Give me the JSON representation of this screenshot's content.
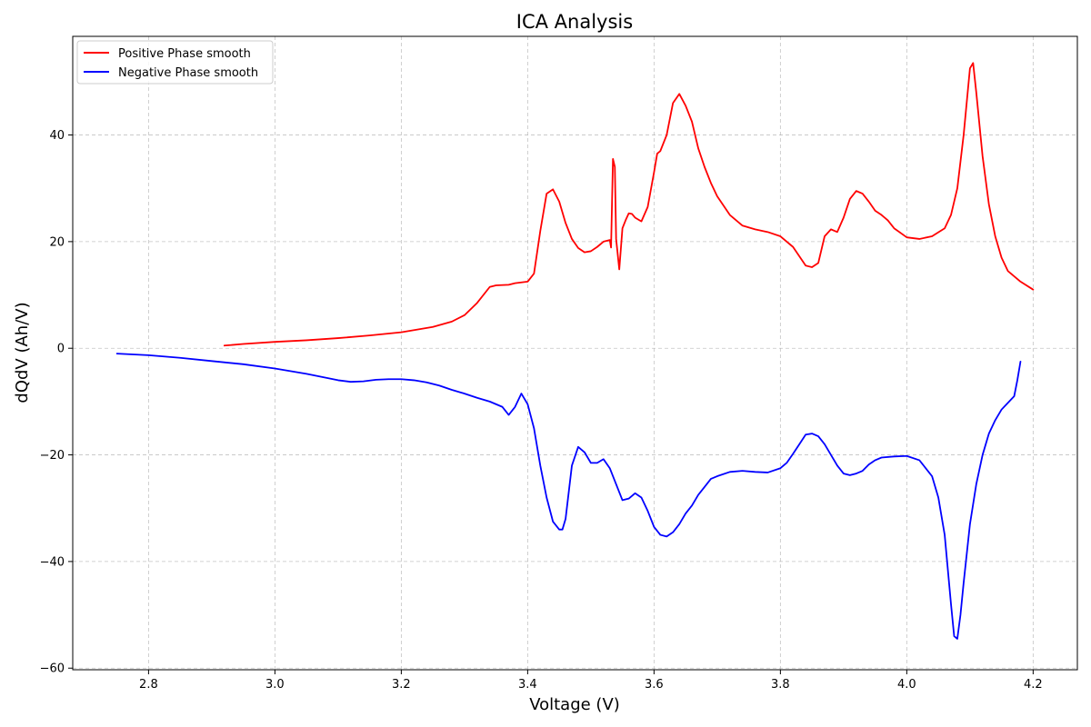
{
  "chart_data": {
    "type": "line",
    "title": "ICA Analysis",
    "xlabel": "Voltage (V)",
    "ylabel": "dQdV (Ah/V)",
    "xlim": [
      2.68,
      4.27
    ],
    "ylim": [
      -60.3,
      58.5
    ],
    "xticks": [
      2.8,
      3.0,
      3.2,
      3.4,
      3.6,
      3.8,
      4.0,
      4.2
    ],
    "xtick_labels": [
      "2.8",
      "3.0",
      "3.2",
      "3.4",
      "3.6",
      "3.8",
      "4.0",
      "4.2"
    ],
    "yticks": [
      -60,
      -40,
      -20,
      0,
      20,
      40
    ],
    "ytick_labels": [
      "−60",
      "−40",
      "−20",
      "0",
      "20",
      "40"
    ],
    "grid": true,
    "legend_position": "top-left",
    "series": [
      {
        "name": "Positive Phase smooth",
        "color": "#ff0000",
        "x": [
          2.92,
          2.95,
          3.0,
          3.05,
          3.1,
          3.15,
          3.2,
          3.25,
          3.28,
          3.3,
          3.32,
          3.34,
          3.35,
          3.37,
          3.38,
          3.4,
          3.41,
          3.42,
          3.43,
          3.44,
          3.45,
          3.46,
          3.47,
          3.48,
          3.49,
          3.5,
          3.51,
          3.52,
          3.53,
          3.532,
          3.535,
          3.538,
          3.54,
          3.545,
          3.55,
          3.555,
          3.56,
          3.565,
          3.57,
          3.58,
          3.59,
          3.6,
          3.605,
          3.61,
          3.62,
          3.63,
          3.64,
          3.65,
          3.66,
          3.67,
          3.68,
          3.69,
          3.7,
          3.72,
          3.74,
          3.76,
          3.78,
          3.8,
          3.82,
          3.84,
          3.85,
          3.86,
          3.87,
          3.88,
          3.89,
          3.9,
          3.91,
          3.92,
          3.93,
          3.94,
          3.95,
          3.96,
          3.97,
          3.98,
          4.0,
          4.02,
          4.04,
          4.06,
          4.07,
          4.08,
          4.09,
          4.1,
          4.105,
          4.11,
          4.12,
          4.13,
          4.14,
          4.15,
          4.16,
          4.18,
          4.2
        ],
        "y": [
          0.5,
          0.8,
          1.2,
          1.5,
          1.9,
          2.4,
          3.0,
          4.0,
          5.0,
          6.2,
          8.5,
          11.5,
          11.8,
          11.9,
          12.2,
          12.5,
          14.0,
          22.0,
          29.0,
          29.8,
          27.5,
          23.5,
          20.5,
          18.8,
          18.0,
          18.2,
          19.0,
          20.0,
          20.3,
          18.9,
          35.5,
          34.0,
          20.5,
          14.8,
          22.5,
          24.0,
          25.3,
          25.2,
          24.5,
          23.8,
          26.5,
          33.0,
          36.5,
          37.0,
          40.0,
          46.0,
          47.7,
          45.5,
          42.5,
          37.5,
          34.0,
          31.0,
          28.5,
          25.0,
          23.0,
          22.3,
          21.8,
          21.0,
          19.0,
          15.5,
          15.2,
          16.0,
          21.0,
          22.3,
          21.8,
          24.5,
          28.0,
          29.5,
          29.0,
          27.5,
          25.8,
          25.0,
          24.0,
          22.5,
          20.8,
          20.5,
          21.0,
          22.5,
          25.0,
          30.0,
          40.0,
          52.5,
          53.5,
          48.0,
          36.0,
          27.0,
          21.0,
          17.0,
          14.5,
          12.5,
          11.0
        ]
      },
      {
        "name": "Negative Phase smooth",
        "color": "#0000ff",
        "x": [
          2.75,
          2.8,
          2.85,
          2.9,
          2.95,
          3.0,
          3.05,
          3.1,
          3.12,
          3.14,
          3.16,
          3.18,
          3.2,
          3.22,
          3.24,
          3.26,
          3.28,
          3.3,
          3.32,
          3.34,
          3.36,
          3.37,
          3.38,
          3.39,
          3.4,
          3.41,
          3.42,
          3.43,
          3.44,
          3.45,
          3.455,
          3.46,
          3.47,
          3.48,
          3.49,
          3.5,
          3.51,
          3.52,
          3.53,
          3.54,
          3.55,
          3.56,
          3.57,
          3.58,
          3.59,
          3.6,
          3.61,
          3.62,
          3.63,
          3.64,
          3.65,
          3.66,
          3.67,
          3.68,
          3.69,
          3.7,
          3.72,
          3.74,
          3.76,
          3.78,
          3.8,
          3.81,
          3.82,
          3.83,
          3.84,
          3.85,
          3.86,
          3.87,
          3.88,
          3.89,
          3.9,
          3.91,
          3.92,
          3.93,
          3.94,
          3.95,
          3.96,
          3.98,
          4.0,
          4.02,
          4.04,
          4.05,
          4.06,
          4.07,
          4.075,
          4.08,
          4.085,
          4.09,
          4.1,
          4.11,
          4.12,
          4.13,
          4.14,
          4.15,
          4.17,
          4.175,
          4.18
        ],
        "y": [
          -1.0,
          -1.3,
          -1.8,
          -2.4,
          -3.0,
          -3.8,
          -4.8,
          -6.0,
          -6.3,
          -6.2,
          -5.9,
          -5.8,
          -5.8,
          -6.0,
          -6.4,
          -7.0,
          -7.8,
          -8.5,
          -9.3,
          -10.0,
          -11.0,
          -12.5,
          -11.0,
          -8.5,
          -10.5,
          -15.0,
          -22.0,
          -28.0,
          -32.5,
          -34.0,
          -34.0,
          -32.0,
          -22.0,
          -18.5,
          -19.5,
          -21.5,
          -21.5,
          -20.8,
          -22.5,
          -25.5,
          -28.5,
          -28.2,
          -27.2,
          -28.0,
          -30.5,
          -33.5,
          -35.0,
          -35.3,
          -34.5,
          -33.0,
          -31.0,
          -29.5,
          -27.5,
          -26.0,
          -24.5,
          -24.0,
          -23.2,
          -23.0,
          -23.2,
          -23.3,
          -22.5,
          -21.5,
          -19.8,
          -18.0,
          -16.2,
          -16.0,
          -16.5,
          -18.0,
          -20.0,
          -22.0,
          -23.5,
          -23.8,
          -23.5,
          -23.0,
          -21.8,
          -21.0,
          -20.5,
          -20.3,
          -20.2,
          -21.0,
          -24.0,
          -28.0,
          -35.0,
          -48.0,
          -54.0,
          -54.5,
          -50.0,
          -44.0,
          -33.0,
          -25.5,
          -20.0,
          -16.0,
          -13.5,
          -11.5,
          -9.0,
          -6.0,
          -2.5
        ]
      }
    ]
  }
}
